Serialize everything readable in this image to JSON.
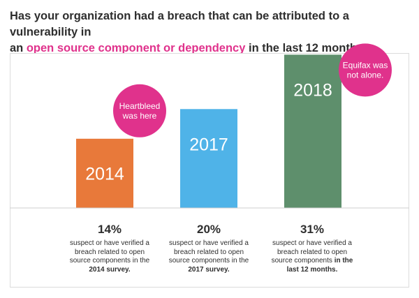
{
  "title": {
    "line1": "Has your organization had a breach that can be attributed to a vulnerability in",
    "line2_prefix": "an ",
    "line2_accent": "open source component or dependency",
    "line2_suffix": " in the last 12 months?"
  },
  "colors": {
    "accent": "#e0328c",
    "bar_2014": "#e8793a",
    "bar_2017": "#4fb3e8",
    "bar_2018": "#5e8f6c",
    "bubble": "#e0328c",
    "axis": "#cfcfcf"
  },
  "chart_data": {
    "type": "bar",
    "categories": [
      "2014",
      "2017",
      "2018"
    ],
    "values": [
      14,
      20,
      31
    ],
    "value_suffix": "%",
    "ylim": [
      0,
      35
    ],
    "grid": false,
    "legend": "none",
    "bar_labels": [
      "2014",
      "2017",
      "2018"
    ],
    "annotations": [
      {
        "category": "2014",
        "lines": [
          "Heartbleed",
          "was here"
        ]
      },
      {
        "category": "2018",
        "lines": [
          "Equifax was",
          "not alone."
        ]
      }
    ],
    "descriptions": [
      {
        "pct": "14%",
        "text": "suspect or have verified a breach related to open source components in the ",
        "bold": "2014 survey."
      },
      {
        "pct": "20%",
        "text": "suspect or have verified a breach related to open source components in the ",
        "bold": "2017 survey."
      },
      {
        "pct": "31%",
        "text": "suspect or have verified a breach related to open source components ",
        "bold": "in the last 12 months."
      }
    ]
  }
}
